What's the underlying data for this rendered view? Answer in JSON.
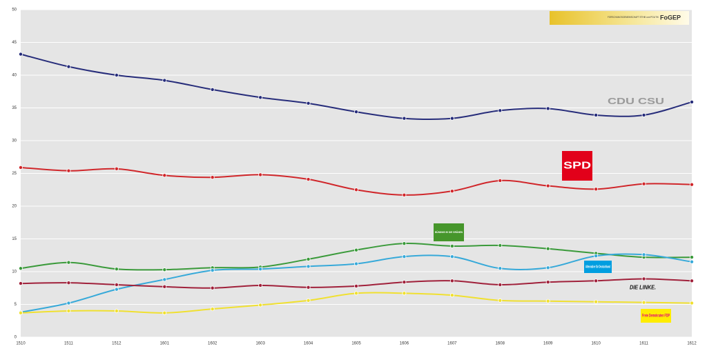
{
  "chart_data": {
    "type": "line",
    "source_logo": {
      "text": "FORSCHUNGSGEMEINSCHAFT ETHIK und POLITIK",
      "name": "FoGEP"
    },
    "categories": [
      "1510",
      "1511",
      "1512",
      "1601",
      "1602",
      "1603",
      "1604",
      "1605",
      "1606",
      "1607",
      "1608",
      "1609",
      "1610",
      "1611",
      "1612"
    ],
    "series": [
      {
        "name": "CDU CSU",
        "color": "#262c7a",
        "values": [
          43.2,
          41.3,
          40.0,
          39.2,
          37.8,
          36.6,
          35.7,
          34.4,
          33.4,
          33.4,
          34.6,
          34.9,
          33.9,
          33.9,
          35.9
        ]
      },
      {
        "name": "SPD",
        "color": "#d0262a",
        "values": [
          25.9,
          25.4,
          25.7,
          24.7,
          24.4,
          24.8,
          24.1,
          22.5,
          21.7,
          22.3,
          23.9,
          23.1,
          22.6,
          23.4,
          23.3
        ]
      },
      {
        "name": "BÜNDNIS 90 DIE GRÜNEN",
        "color": "#3a9a3a",
        "values": [
          10.5,
          11.4,
          10.4,
          10.3,
          10.6,
          10.7,
          11.9,
          13.3,
          14.3,
          13.9,
          14.0,
          13.5,
          12.8,
          12.2,
          12.2
        ]
      },
      {
        "name": "Alternative für Deutschland",
        "color": "#36a9d9",
        "values": [
          3.8,
          5.2,
          7.3,
          8.8,
          10.2,
          10.4,
          10.8,
          11.2,
          12.3,
          12.3,
          10.5,
          10.6,
          12.4,
          12.6,
          11.5
        ]
      },
      {
        "name": "DIE LINKE.",
        "color": "#a0203a",
        "values": [
          8.2,
          8.3,
          8.0,
          7.7,
          7.5,
          7.9,
          7.6,
          7.8,
          8.4,
          8.6,
          8.0,
          8.4,
          8.6,
          8.9,
          8.6
        ]
      },
      {
        "name": "Freie Demokraten FDP",
        "color": "#f0e030",
        "values": [
          3.7,
          4.0,
          4.0,
          3.7,
          4.3,
          4.9,
          5.6,
          6.7,
          6.7,
          6.4,
          5.6,
          5.5,
          5.4,
          5.3,
          5.2
        ]
      }
    ],
    "ylim": [
      0,
      50
    ],
    "yticks": [
      0,
      5,
      10,
      15,
      20,
      25,
      30,
      35,
      40,
      45,
      50
    ],
    "grid": true
  }
}
